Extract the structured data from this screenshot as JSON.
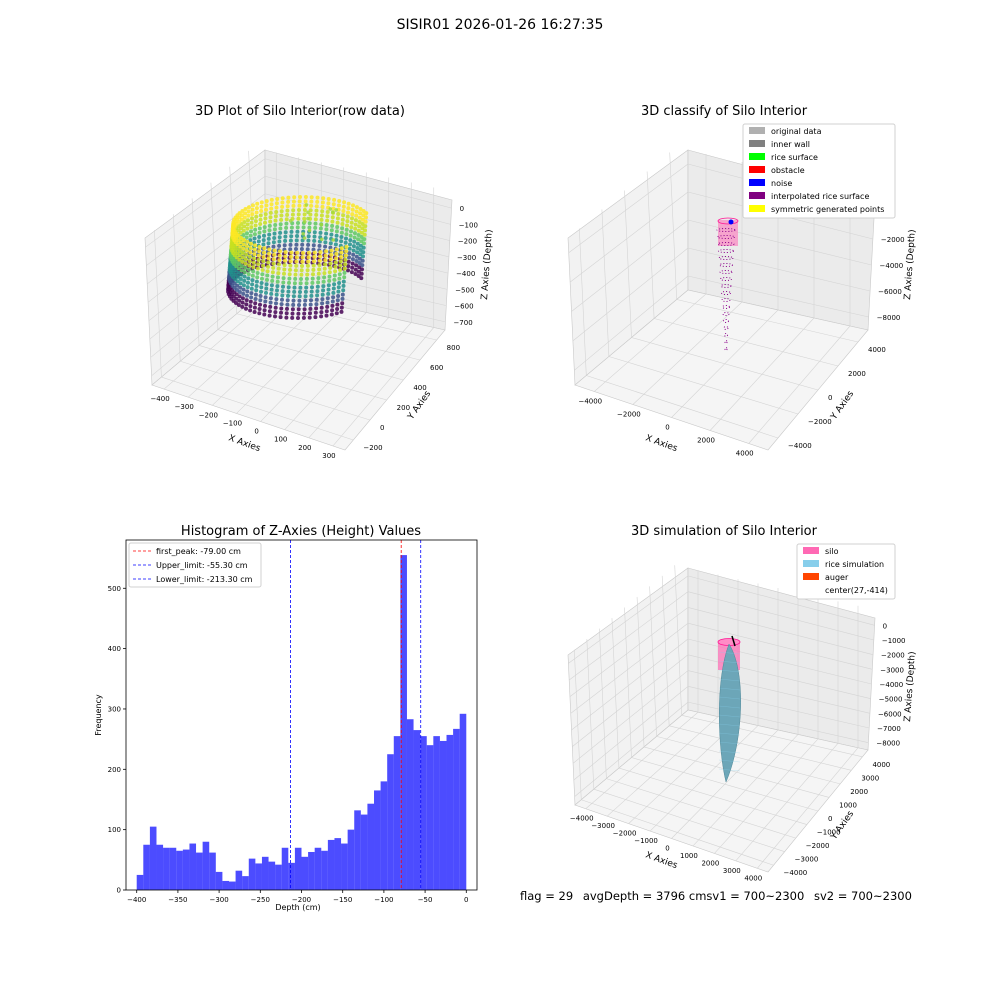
{
  "suptitle": "SISIR01 2026-01-26 16:27:35",
  "panels": {
    "tl": {
      "title": "3D Plot of Silo Interior(row data)",
      "xlabel": "X Axies",
      "ylabel": "Y Axies",
      "zlabel": "Z Axies (Depth)",
      "xticks": [
        "−400",
        "−300",
        "−200",
        "−100",
        "0",
        "100",
        "200",
        "300"
      ],
      "yticks": [
        "−200",
        "0",
        "200",
        "400",
        "600",
        "800"
      ],
      "zticks": [
        "0",
        "−100",
        "−200",
        "−300",
        "−400",
        "−500",
        "−600",
        "−700"
      ]
    },
    "tr": {
      "title": "3D classify of Silo Interior",
      "xlabel": "X Axies",
      "ylabel": "Y Axies",
      "zlabel": "Z Axies (Depth)",
      "xticks": [
        "−4000",
        "−2000",
        "0",
        "2000",
        "4000"
      ],
      "yticks": [
        "−4000",
        "−2000",
        "0",
        "2000",
        "4000"
      ],
      "zticks": [
        "0",
        "−2000",
        "−4000",
        "−6000",
        "−8000"
      ],
      "legend": [
        {
          "label": "original data",
          "color": "#b0b0b0"
        },
        {
          "label": "inner wall",
          "color": "#808080"
        },
        {
          "label": "rice surface",
          "color": "#00ff00"
        },
        {
          "label": "obstacle",
          "color": "#ff0000"
        },
        {
          "label": "noise",
          "color": "#0000ff"
        },
        {
          "label": "interpolated rice surface",
          "color": "#800080"
        },
        {
          "label": "symmetric generated points",
          "color": "#ffff00"
        }
      ]
    },
    "br": {
      "title": "3D simulation of Silo Interior",
      "xlabel": "X Axies",
      "ylabel": "Y Axies",
      "zlabel": "Z Axies (Depth)",
      "xticks": [
        "−4000",
        "−3000",
        "−2000",
        "−1000",
        "0",
        "1000",
        "2000",
        "3000",
        "4000"
      ],
      "yticks": [
        "−4000",
        "−3000",
        "−2000",
        "−1000",
        "0",
        "1000",
        "2000",
        "3000",
        "4000"
      ],
      "zticks": [
        "0",
        "−1000",
        "−2000",
        "−3000",
        "−4000",
        "−5000",
        "−6000",
        "−7000",
        "−8000"
      ],
      "legend": [
        {
          "label": "silo",
          "color": "#ff69b4"
        },
        {
          "label": "rice simulation",
          "color": "#87ceeb"
        },
        {
          "label": "auger",
          "color": "#ff4500"
        },
        {
          "label": "center(27,-414)",
          "color": ""
        }
      ]
    }
  },
  "status": {
    "flag": "flag = 29",
    "avg": "avgDepth = 3796 cmsv1 = 700~2300",
    "sv2": "sv2 = 700~2300"
  },
  "chart_data": [
    {
      "type": "bar",
      "title": "Histogram of Z-Axies (Height) Values",
      "xlabel": "Depth (cm)",
      "ylabel": "Frequency",
      "xlim": [
        -413,
        13
      ],
      "ylim": [
        0,
        580
      ],
      "xticks": [
        -400,
        -350,
        -300,
        -250,
        -200,
        -150,
        -100,
        -50,
        0
      ],
      "yticks": [
        0,
        100,
        200,
        300,
        400,
        500
      ],
      "bin_start": -400,
      "bin_width": 8,
      "values": [
        25,
        75,
        105,
        75,
        70,
        70,
        65,
        67,
        77,
        62,
        80,
        62,
        30,
        15,
        14,
        32,
        23,
        52,
        44,
        55,
        47,
        42,
        70,
        45,
        70,
        55,
        63,
        70,
        65,
        83,
        86,
        77,
        100,
        132,
        125,
        143,
        165,
        180,
        225,
        255,
        555,
        283,
        265,
        255,
        240,
        255,
        247,
        257,
        267,
        292
      ],
      "bar_color": "#0000ff",
      "vlines": [
        {
          "label": "first_peak: -79.00 cm",
          "x": -79.0,
          "color": "#ff0000"
        },
        {
          "label": "Upper_limit: -55.30 cm",
          "x": -55.3,
          "color": "#0000ff"
        },
        {
          "label": "Lower_limit: -213.30 cm",
          "x": -213.3,
          "color": "#0000ff"
        }
      ]
    }
  ]
}
